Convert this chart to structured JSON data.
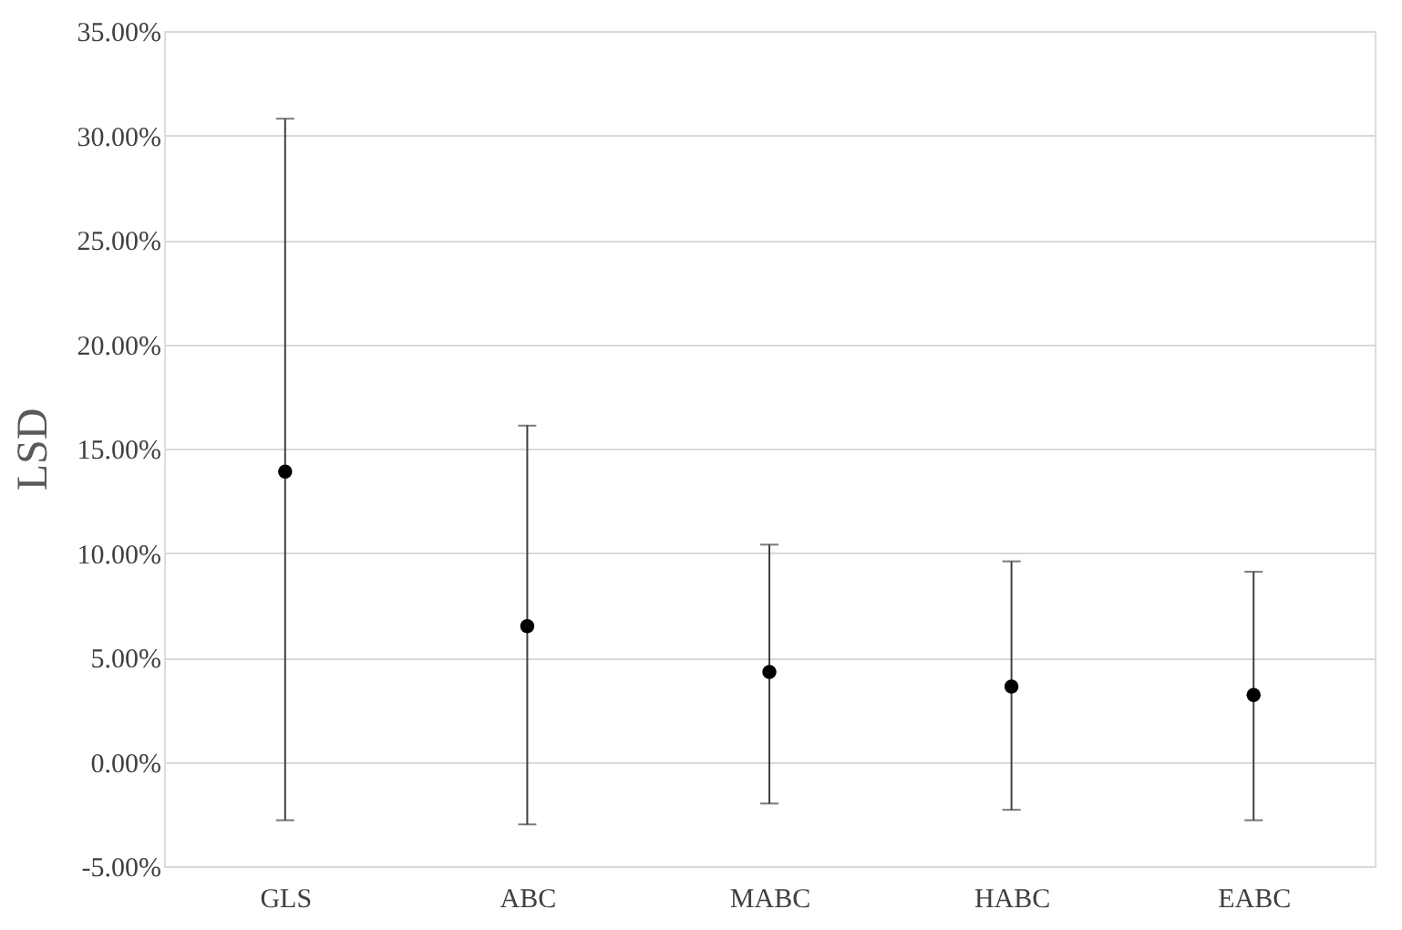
{
  "chart_data": {
    "type": "scatter",
    "ylabel": "LSD",
    "categories": [
      "GLS",
      "ABC",
      "MABC",
      "HABC",
      "EABC"
    ],
    "values": [
      13.9,
      6.5,
      4.3,
      3.6,
      3.2
    ],
    "errors": [
      [
        -2.8,
        30.8
      ],
      [
        -3.0,
        16.1
      ],
      [
        -2.0,
        10.4
      ],
      [
        -2.3,
        9.6
      ],
      [
        -2.8,
        9.1
      ]
    ],
    "color": "#000000",
    "marker": "circle",
    "ylim": [
      -5,
      35
    ],
    "yticks": [
      {
        "value": -5,
        "label": "-5.00%"
      },
      {
        "value": 0,
        "label": "0.00%"
      },
      {
        "value": 5,
        "label": "5.00%"
      },
      {
        "value": 10,
        "label": "10.00%"
      },
      {
        "value": 15,
        "label": "15.00%"
      },
      {
        "value": 20,
        "label": "20.00%"
      },
      {
        "value": 25,
        "label": "25.00%"
      },
      {
        "value": 30,
        "label": "30.00%"
      },
      {
        "value": 35,
        "label": "35.00%"
      }
    ],
    "grid": "y"
  }
}
